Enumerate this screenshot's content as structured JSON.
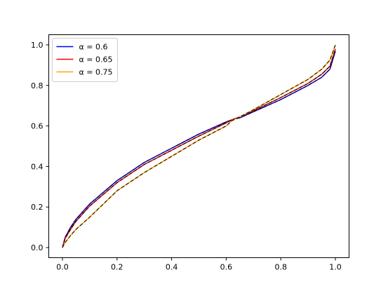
{
  "chart_data": {
    "type": "line",
    "title": "",
    "xlabel": "",
    "ylabel": "",
    "xlim": [
      -0.05,
      1.05
    ],
    "ylim": [
      -0.05,
      1.05
    ],
    "x_ticks": [
      "0.0",
      "0.2",
      "0.4",
      "0.6",
      "0.8",
      "1.0"
    ],
    "y_ticks": [
      "0.0",
      "0.2",
      "0.4",
      "0.6",
      "0.8",
      "1.0"
    ],
    "grid": false,
    "legend_position": "top-left",
    "x": [
      0.0,
      0.01,
      0.03,
      0.05,
      0.1,
      0.2,
      0.3,
      0.4,
      0.5,
      0.6,
      0.62,
      0.65,
      0.7,
      0.8,
      0.9,
      0.95,
      0.98,
      1.0
    ],
    "series": [
      {
        "name": "α = 0.6",
        "color": "#0000ff",
        "values": [
          0.0,
          0.05,
          0.1,
          0.14,
          0.215,
          0.33,
          0.42,
          0.49,
          0.56,
          0.62,
          0.63,
          0.64,
          0.67,
          0.73,
          0.8,
          0.84,
          0.88,
          0.97
        ]
      },
      {
        "name": "α = 0.65",
        "color": "#ff0000",
        "values": [
          0.0,
          0.045,
          0.09,
          0.13,
          0.205,
          0.32,
          0.41,
          0.48,
          0.55,
          0.615,
          0.63,
          0.645,
          0.675,
          0.74,
          0.81,
          0.855,
          0.895,
          0.98
        ]
      },
      {
        "name": "α = 0.75",
        "color": "#ffa500",
        "values": [
          0.0,
          0.025,
          0.06,
          0.09,
          0.15,
          0.28,
          0.37,
          0.45,
          0.53,
          0.6,
          0.625,
          0.645,
          0.68,
          0.755,
          0.83,
          0.88,
          0.925,
          1.0
        ]
      }
    ]
  }
}
